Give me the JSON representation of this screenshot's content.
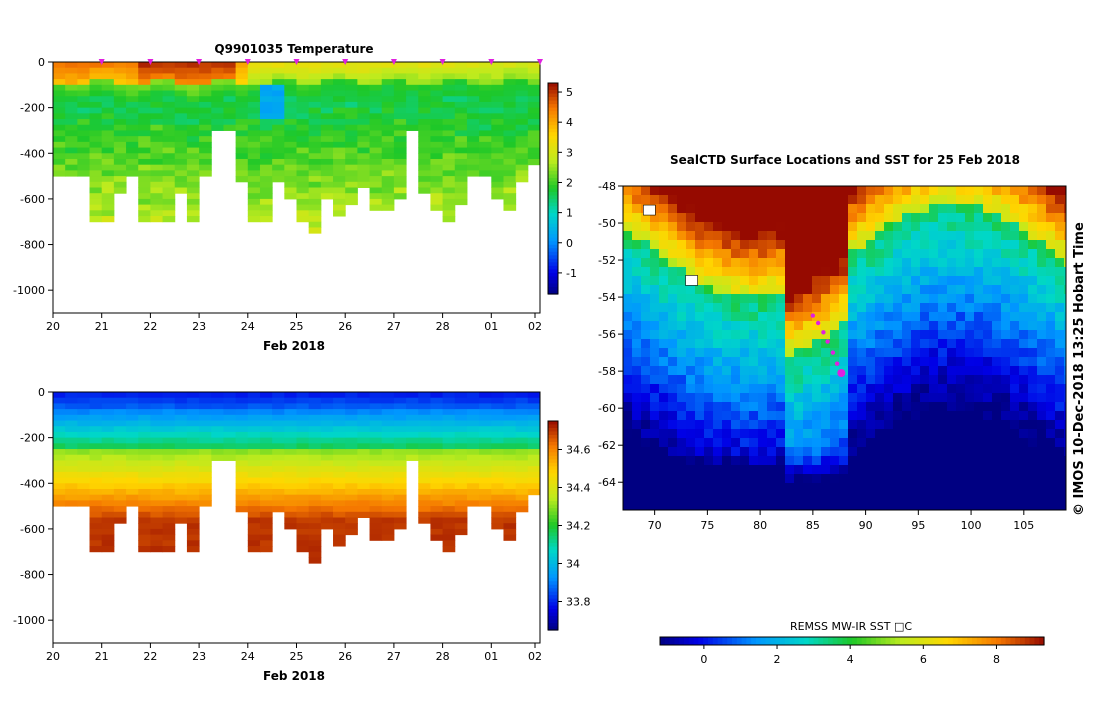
{
  "credit": "© IMOS 10-Dec-2018 13:25 Hobart Time",
  "chart_data": [
    {
      "type": "heatmap",
      "title": "Q9901035  Temperature",
      "xlabel": "Feb 2018",
      "ylabel": "",
      "x_ticks": [
        "20",
        "21",
        "22",
        "23",
        "24",
        "25",
        "26",
        "27",
        "28",
        "01",
        "02"
      ],
      "y_ticks": [
        "0",
        "-200",
        "-400",
        "-600",
        "-800",
        "-1000"
      ],
      "y_tick_values": [
        0,
        -200,
        -400,
        -600,
        -800,
        -1000
      ],
      "ylim": [
        -1100,
        0
      ],
      "xlim_days": [
        0,
        10
      ],
      "colorbar": {
        "ticks": [
          "5",
          "4",
          "3",
          "2",
          "1",
          "0",
          "-1"
        ],
        "tick_values": [
          5,
          4,
          3,
          2,
          1,
          0,
          -1
        ],
        "range": [
          -1.7,
          5.3
        ]
      },
      "profile_days": [
        0.0,
        0.25,
        0.5,
        0.75,
        1.0,
        1.25,
        1.5,
        1.75,
        2.0,
        2.25,
        2.5,
        2.75,
        3.0,
        3.25,
        3.5,
        3.75,
        4.0,
        4.25,
        4.5,
        4.75,
        5.0,
        5.25,
        5.5,
        5.75,
        6.0,
        6.25,
        6.5,
        6.75,
        7.0,
        7.25,
        7.5,
        7.75,
        8.0,
        8.25,
        8.5,
        8.75,
        9.0,
        9.25,
        9.5,
        9.75
      ],
      "profile_max_depth": [
        500,
        500,
        480,
        690,
        700,
        560,
        480,
        680,
        690,
        690,
        560,
        690,
        500,
        300,
        300,
        520,
        700,
        700,
        520,
        600,
        690,
        740,
        600,
        660,
        610,
        550,
        630,
        630,
        600,
        300,
        560,
        650,
        700,
        610,
        500,
        500,
        580,
        640,
        510,
        440
      ],
      "surface_markers_days": [
        1.0,
        2.0,
        3.0,
        4.0,
        5.0,
        6.0,
        7.0,
        8.0,
        9.0,
        10.0
      ]
    },
    {
      "type": "heatmap",
      "title": "",
      "xlabel": "Feb 2018",
      "ylabel": "",
      "x_ticks": [
        "20",
        "21",
        "22",
        "23",
        "24",
        "25",
        "26",
        "27",
        "28",
        "01",
        "02"
      ],
      "y_ticks": [
        "0",
        "-200",
        "-400",
        "-600",
        "-800",
        "-1000"
      ],
      "y_tick_values": [
        0,
        -200,
        -400,
        -600,
        -800,
        -1000
      ],
      "ylim": [
        -1100,
        0
      ],
      "colorbar": {
        "ticks": [
          "34.6",
          "34.4",
          "34.2",
          "34",
          "33.8"
        ],
        "tick_values": [
          34.6,
          34.4,
          34.2,
          34.0,
          33.8
        ],
        "range": [
          33.65,
          34.75
        ]
      }
    },
    {
      "type": "heatmap",
      "title": "SealCTD Surface Locations and SST for 25 Feb 2018",
      "xlabel": "",
      "ylabel": "",
      "x_ticks": [
        "70",
        "75",
        "80",
        "85",
        "90",
        "95",
        "100",
        "105"
      ],
      "x_tick_values": [
        70,
        75,
        80,
        85,
        90,
        95,
        100,
        105
      ],
      "xlim": [
        67,
        109
      ],
      "y_ticks": [
        "-48",
        "-50",
        "-52",
        "-54",
        "-56",
        "-58",
        "-60",
        "-62",
        "-64"
      ],
      "y_tick_values": [
        -48,
        -50,
        -52,
        -54,
        -56,
        -58,
        -60,
        -62,
        -64
      ],
      "ylim": [
        -65.5,
        -48
      ],
      "colorbar": {
        "label": "REMSS MW-IR SST □C",
        "ticks": [
          "0",
          "2",
          "4",
          "6",
          "8"
        ],
        "tick_values": [
          0,
          2,
          4,
          6,
          8
        ],
        "range": [
          -1.2,
          9.3
        ]
      },
      "track": [
        [
          85.0,
          -55.0
        ],
        [
          85.5,
          -55.4
        ],
        [
          86.0,
          -55.9
        ],
        [
          86.4,
          -56.4
        ],
        [
          86.9,
          -57.0
        ],
        [
          87.3,
          -57.6
        ],
        [
          87.7,
          -58.1
        ]
      ],
      "islands": [
        [
          69.5,
          -49.3
        ],
        [
          73.5,
          -53.1
        ]
      ]
    }
  ]
}
